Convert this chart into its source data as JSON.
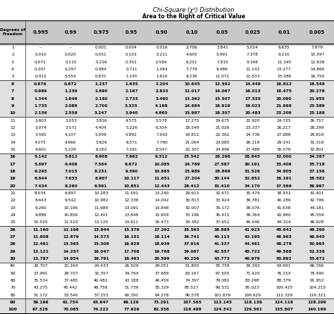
{
  "title1": "Chi-Square (χ²) Distribution",
  "title2": "Area to the Right of Critical Value",
  "col_header": [
    "0.995",
    "0.99",
    "0.975",
    "0.95",
    "0.90",
    "0.10",
    "0.05",
    "0.025",
    "0.01",
    "0.005"
  ],
  "rows": [
    [
      1,
      "–",
      "–",
      "0.001",
      "0.004",
      "0.016",
      "2.706",
      "3.841",
      "5.024",
      "6.635",
      "7.879"
    ],
    [
      2,
      "0.010",
      "0.020",
      "0.051",
      "0.103",
      "0.211",
      "4.605",
      "5.991",
      "7.378",
      "9.210",
      "10.597"
    ],
    [
      3,
      "0.072",
      "0.115",
      "0.216",
      "0.352",
      "0.584",
      "6.251",
      "7.815",
      "9.348",
      "11.345",
      "12.838"
    ],
    [
      4,
      "0.207",
      "0.297",
      "0.484",
      "0.711",
      "1.064",
      "7.779",
      "9.488",
      "11.143",
      "13.277",
      "14.860"
    ],
    [
      5,
      "0.412",
      "0.554",
      "0.831",
      "1.145",
      "1.610",
      "9.236",
      "11.071",
      "12.833",
      "15.086",
      "16.750"
    ],
    [
      6,
      "0.676",
      "0.872",
      "1.237",
      "1.635",
      "2.204",
      "10.645",
      "12.592",
      "14.449",
      "16.812",
      "18.548"
    ],
    [
      7,
      "0.989",
      "1.239",
      "1.690",
      "2.167",
      "2.833",
      "12.017",
      "14.067",
      "16.013",
      "18.475",
      "20.278"
    ],
    [
      8,
      "1.344",
      "1.646",
      "2.180",
      "2.733",
      "3.490",
      "13.362",
      "15.507",
      "17.535",
      "20.090",
      "21.955"
    ],
    [
      9,
      "1.735",
      "2.088",
      "2.700",
      "3.325",
      "4.168",
      "14.684",
      "16.919",
      "19.023",
      "21.666",
      "23.589"
    ],
    [
      10,
      "2.156",
      "2.558",
      "3.247",
      "3.940",
      "4.865",
      "15.987",
      "18.307",
      "20.483",
      "23.209",
      "25.188"
    ],
    [
      11,
      "2.603",
      "3.053",
      "3.816",
      "4.575",
      "5.578",
      "17.275",
      "19.675",
      "21.920",
      "24.725",
      "26.757"
    ],
    [
      12,
      "3.074",
      "3.571",
      "4.404",
      "5.226",
      "6.304",
      "18.549",
      "21.026",
      "23.337",
      "26.217",
      "28.299"
    ],
    [
      13,
      "3.565",
      "4.107",
      "5.009",
      "5.892",
      "7.042",
      "19.812",
      "22.362",
      "24.736",
      "27.688",
      "29.819"
    ],
    [
      14,
      "4.075",
      "4.660",
      "5.629",
      "6.571",
      "7.790",
      "21.064",
      "23.685",
      "26.119",
      "29.141",
      "31.319"
    ],
    [
      15,
      "4.601",
      "5.229",
      "6.262",
      "7.261",
      "8.547",
      "22.307",
      "24.996",
      "27.488",
      "30.578",
      "32.801"
    ],
    [
      16,
      "5.142",
      "5.812",
      "6.908",
      "7.962",
      "9.312",
      "23.542",
      "26.296",
      "28.845",
      "32.000",
      "34.267"
    ],
    [
      17,
      "5.697",
      "6.408",
      "7.564",
      "8.672",
      "10.085",
      "24.769",
      "27.587",
      "30.191",
      "33.409",
      "35.718"
    ],
    [
      18,
      "6.265",
      "7.015",
      "8.231",
      "9.390",
      "10.865",
      "25.989",
      "28.869",
      "31.526",
      "34.805",
      "37.156"
    ],
    [
      19,
      "6.844",
      "7.633",
      "8.907",
      "10.117",
      "11.651",
      "27.204",
      "30.144",
      "32.852",
      "36.191",
      "38.582"
    ],
    [
      20,
      "7.434",
      "8.260",
      "9.591",
      "10.851",
      "12.443",
      "28.412",
      "31.410",
      "34.170",
      "37.566",
      "39.997"
    ],
    [
      21,
      "8.034",
      "8.897",
      "10.283",
      "11.591",
      "13.240",
      "29.615",
      "32.671",
      "35.479",
      "38.932",
      "41.401"
    ],
    [
      22,
      "8.643",
      "9.542",
      "10.982",
      "12.338",
      "14.042",
      "30.813",
      "33.924",
      "36.781",
      "40.289",
      "42.796"
    ],
    [
      23,
      "9.260",
      "10.196",
      "11.689",
      "13.091",
      "14.848",
      "32.007",
      "35.172",
      "38.076",
      "41.638",
      "44.181"
    ],
    [
      24,
      "9.886",
      "10.856",
      "12.401",
      "13.848",
      "15.659",
      "33.196",
      "36.415",
      "39.364",
      "42.980",
      "45.559"
    ],
    [
      25,
      "10.520",
      "11.524",
      "13.120",
      "14.611",
      "16.473",
      "34.382",
      "37.652",
      "40.646",
      "44.314",
      "46.928"
    ],
    [
      26,
      "11.160",
      "12.198",
      "13.844",
      "15.379",
      "17.292",
      "35.563",
      "38.885",
      "41.923",
      "45.642",
      "48.290"
    ],
    [
      27,
      "11.808",
      "12.879",
      "14.573",
      "16.151",
      "18.114",
      "36.741",
      "40.113",
      "43.195",
      "46.963",
      "49.645"
    ],
    [
      28,
      "12.461",
      "13.565",
      "15.308",
      "16.928",
      "18.939",
      "37.916",
      "41.337",
      "44.461",
      "48.278",
      "50.993"
    ],
    [
      29,
      "13.121",
      "14.257",
      "16.047",
      "17.708",
      "19.768",
      "39.087",
      "42.557",
      "45.722",
      "49.588",
      "52.336"
    ],
    [
      30,
      "13.787",
      "14.954",
      "16.791",
      "18.493",
      "20.599",
      "40.256",
      "43.773",
      "46.979",
      "50.892",
      "53.672"
    ],
    [
      40,
      "20.707",
      "22.164",
      "24.433",
      "26.509",
      "29.051",
      "51.805",
      "55.758",
      "59.342",
      "63.691",
      "66.766"
    ],
    [
      50,
      "27.991",
      "29.707",
      "32.357",
      "34.764",
      "37.689",
      "63.167",
      "67.505",
      "71.420",
      "76.154",
      "79.490"
    ],
    [
      60,
      "35.534",
      "37.485",
      "40.482",
      "43.188",
      "46.459",
      "74.397",
      "79.082",
      "83.298",
      "88.379",
      "91.952"
    ],
    [
      70,
      "43.275",
      "45.442",
      "48.758",
      "51.739",
      "55.329",
      "85.527",
      "90.531",
      "95.023",
      "100.425",
      "104.215"
    ],
    [
      80,
      "51.172",
      "53.540",
      "57.153",
      "60.391",
      "64.278",
      "96.578",
      "101.879",
      "106.629",
      "112.329",
      "116.321"
    ],
    [
      90,
      "59.196",
      "61.754",
      "65.647",
      "69.126",
      "73.291",
      "107.565",
      "113.145",
      "118.136",
      "124.116",
      "128.299"
    ],
    [
      100,
      "67.328",
      "70.065",
      "74.222",
      "77.929",
      "82.358",
      "118.498",
      "124.342",
      "129.561",
      "135.807",
      "140.169"
    ]
  ],
  "shading": {
    "gray": "#e0e0e0",
    "white": "#ffffff"
  }
}
